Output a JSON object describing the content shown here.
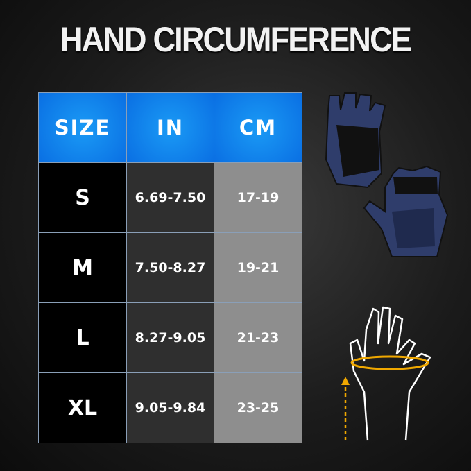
{
  "title": "HAND CIRCUMFERENCE",
  "table": {
    "headers": [
      "SIZE",
      "IN",
      "CM"
    ],
    "rows": [
      {
        "size": "S",
        "in": "6.69-7.50",
        "cm": "17-19"
      },
      {
        "size": "M",
        "in": "7.50-8.27",
        "cm": "19-21"
      },
      {
        "size": "L",
        "in": "8.27-9.05",
        "cm": "21-23"
      },
      {
        "size": "XL",
        "in": "9.05-9.84",
        "cm": "23-25"
      }
    ]
  },
  "colors": {
    "header": "#0a7ff0",
    "size_col": "#000000",
    "in_col": "#2f2f2f",
    "cm_col": "#8e8e8e",
    "measure": "#f0a800"
  }
}
